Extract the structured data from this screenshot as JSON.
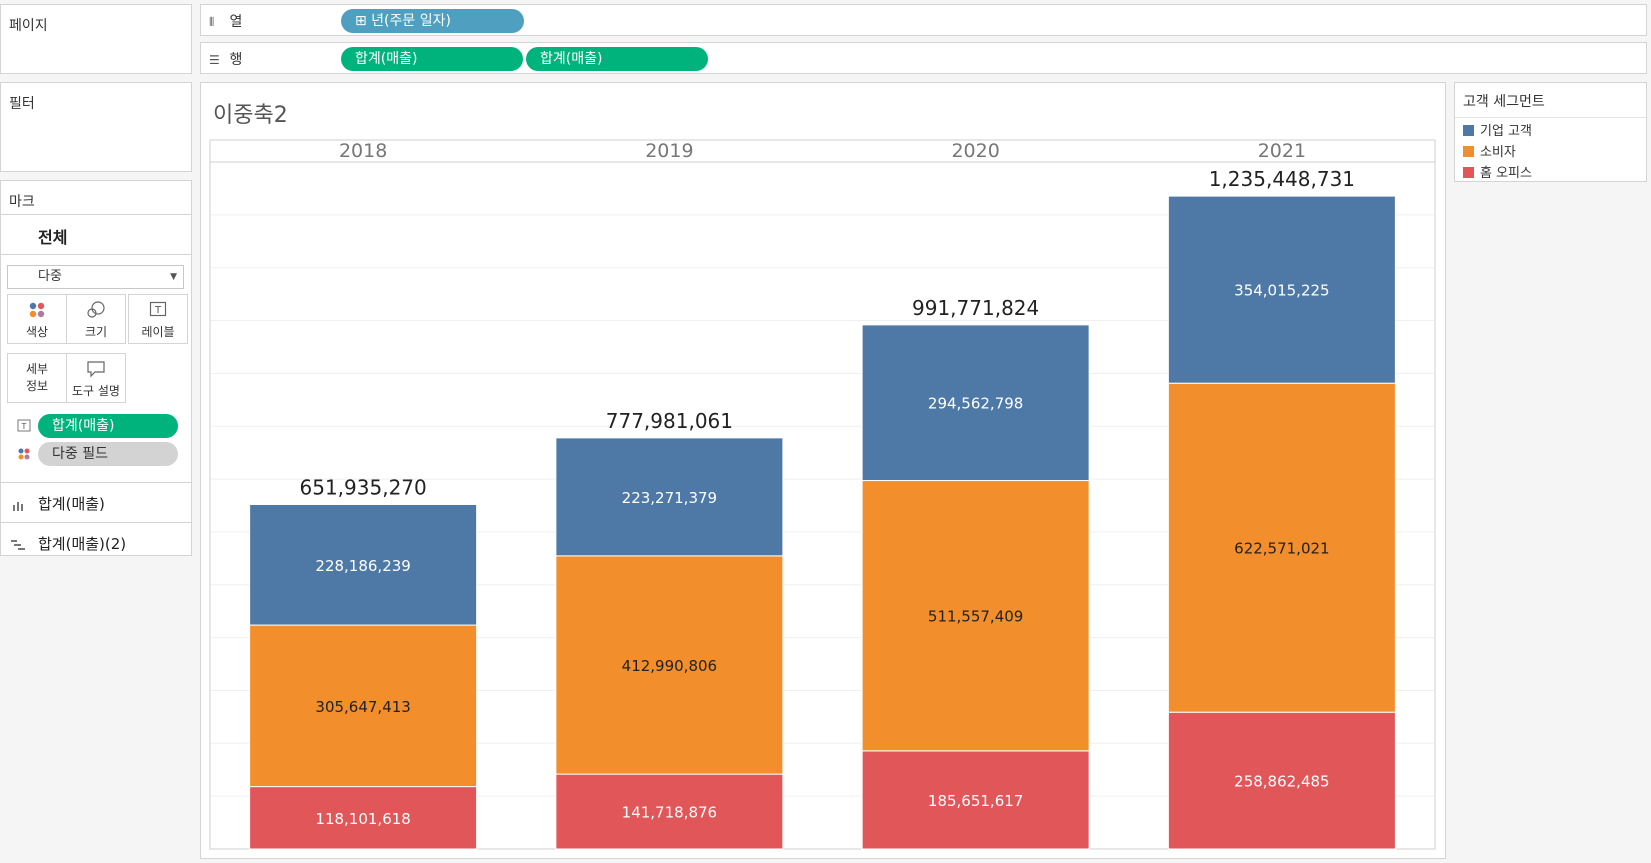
{
  "left": {
    "pages_label": "페이지",
    "filters_label": "필터",
    "marks_label": "마크",
    "marks_all": "전체",
    "mark_type": "다중",
    "cards": [
      {
        "label": "색상",
        "icon": "color-icon"
      },
      {
        "label": "크기",
        "icon": "size-icon"
      },
      {
        "label": "레이블",
        "icon": "label-icon"
      },
      {
        "label": "세부\n정보",
        "icon": "detail-icon"
      },
      {
        "label": "도구 설명",
        "icon": "tooltip-icon"
      }
    ],
    "mark_fields": [
      {
        "label": "합계(매출)",
        "icon": "label-icon"
      },
      {
        "label": "다중 필드",
        "icon": "color-icon"
      }
    ],
    "axis_items": [
      "합계(매출)",
      "합계(매출)(2)"
    ]
  },
  "shelves": {
    "columns_label": "열",
    "rows_label": "행",
    "columns_pills": [
      "⊞ 년(주문 일자)"
    ],
    "rows_pills": [
      "합계(매출)",
      "합계(매출)"
    ]
  },
  "chart_title": "이중축2",
  "legend": {
    "title": "고객 세그먼트",
    "items": [
      {
        "label": "기업 고객",
        "color": "#4e79a7"
      },
      {
        "label": "소비자",
        "color": "#f28e2b"
      },
      {
        "label": "홈 오피스",
        "color": "#e15759"
      }
    ]
  },
  "chart_data": {
    "type": "bar",
    "stacked": true,
    "categories": [
      "2018",
      "2019",
      "2020",
      "2021"
    ],
    "series": [
      {
        "name": "홈 오피스",
        "color": "#e15759",
        "values": [
          118101618,
          141718876,
          185651617,
          258862485
        ],
        "labels": [
          "118,101,618",
          "141,718,876",
          "185,651,617",
          "258,862,485"
        ]
      },
      {
        "name": "소비자",
        "color": "#f28e2b",
        "values": [
          305647413,
          412990806,
          511557409,
          622571021
        ],
        "labels": [
          "305,647,413",
          "412,990,806",
          "511,557,409",
          "622,571,021"
        ]
      },
      {
        "name": "기업 고객",
        "color": "#4e79a7",
        "values": [
          228186239,
          223271379,
          294562798,
          354015225
        ],
        "labels": [
          "228,186,239",
          "223,271,379",
          "294,562,798",
          "354,015,225"
        ]
      }
    ],
    "totals": [
      651935270,
      777981061,
      991771824,
      1235448731
    ],
    "total_labels": [
      "651,935,270",
      "777,981,061",
      "991,771,824",
      "1,235,448,731"
    ],
    "gridlines": true
  }
}
